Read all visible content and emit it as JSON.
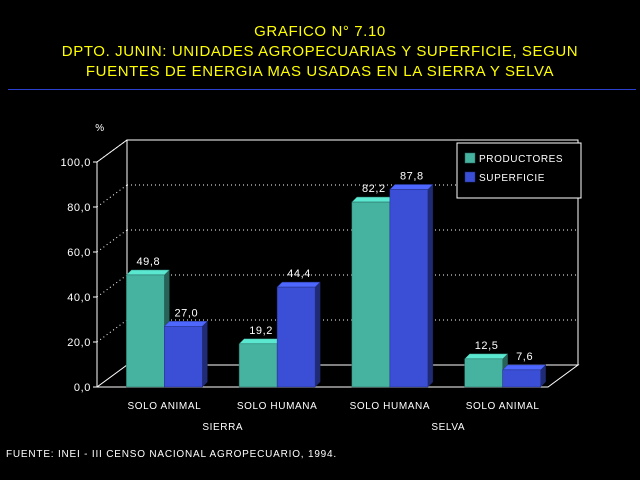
{
  "title": {
    "line1": "GRAFICO N° 7.10",
    "line2": "DPTO. JUNIN: UNIDADES AGROPECUARIAS Y SUPERFICIE, SEGUN",
    "line3": "FUENTES DE ENERGIA MAS USADAS EN LA SIERRA Y SELVA"
  },
  "source": "FUENTE: INEI - III CENSO NACIONAL AGROPECUARIO, 1994.",
  "colors": {
    "title": "#ffff00",
    "text": "#ffffff",
    "productores": "#45b3a0",
    "superficie": "#3b4fd6",
    "rule": "#2a3fd0"
  },
  "chart_data": {
    "type": "bar",
    "ylabel": "%",
    "ylim": [
      0,
      100
    ],
    "yticks": [
      "0,0",
      "20,0",
      "40,0",
      "60,0",
      "80,0",
      "100,0"
    ],
    "categories": [
      "SOLO ANIMAL",
      "SOLO HUMANA",
      "SOLO HUMANA",
      "SOLO ANIMAL"
    ],
    "groups": [
      {
        "label": "SIERRA",
        "categories": [
          0,
          1
        ]
      },
      {
        "label": "SELVA",
        "categories": [
          2,
          3
        ]
      }
    ],
    "series": [
      {
        "name": "PRODUCTORES",
        "values": [
          49.8,
          19.2,
          82.2,
          12.5
        ],
        "labels": [
          "49,8",
          "19,2",
          "82,2",
          "12,5"
        ]
      },
      {
        "name": "SUPERFICIE",
        "values": [
          27.0,
          44.4,
          87.8,
          7.6
        ],
        "labels": [
          "27,0",
          "44,4",
          "87,8",
          "7,6"
        ]
      }
    ],
    "legend": "top-right",
    "grid": "dotted horizontal",
    "style": "3d"
  }
}
